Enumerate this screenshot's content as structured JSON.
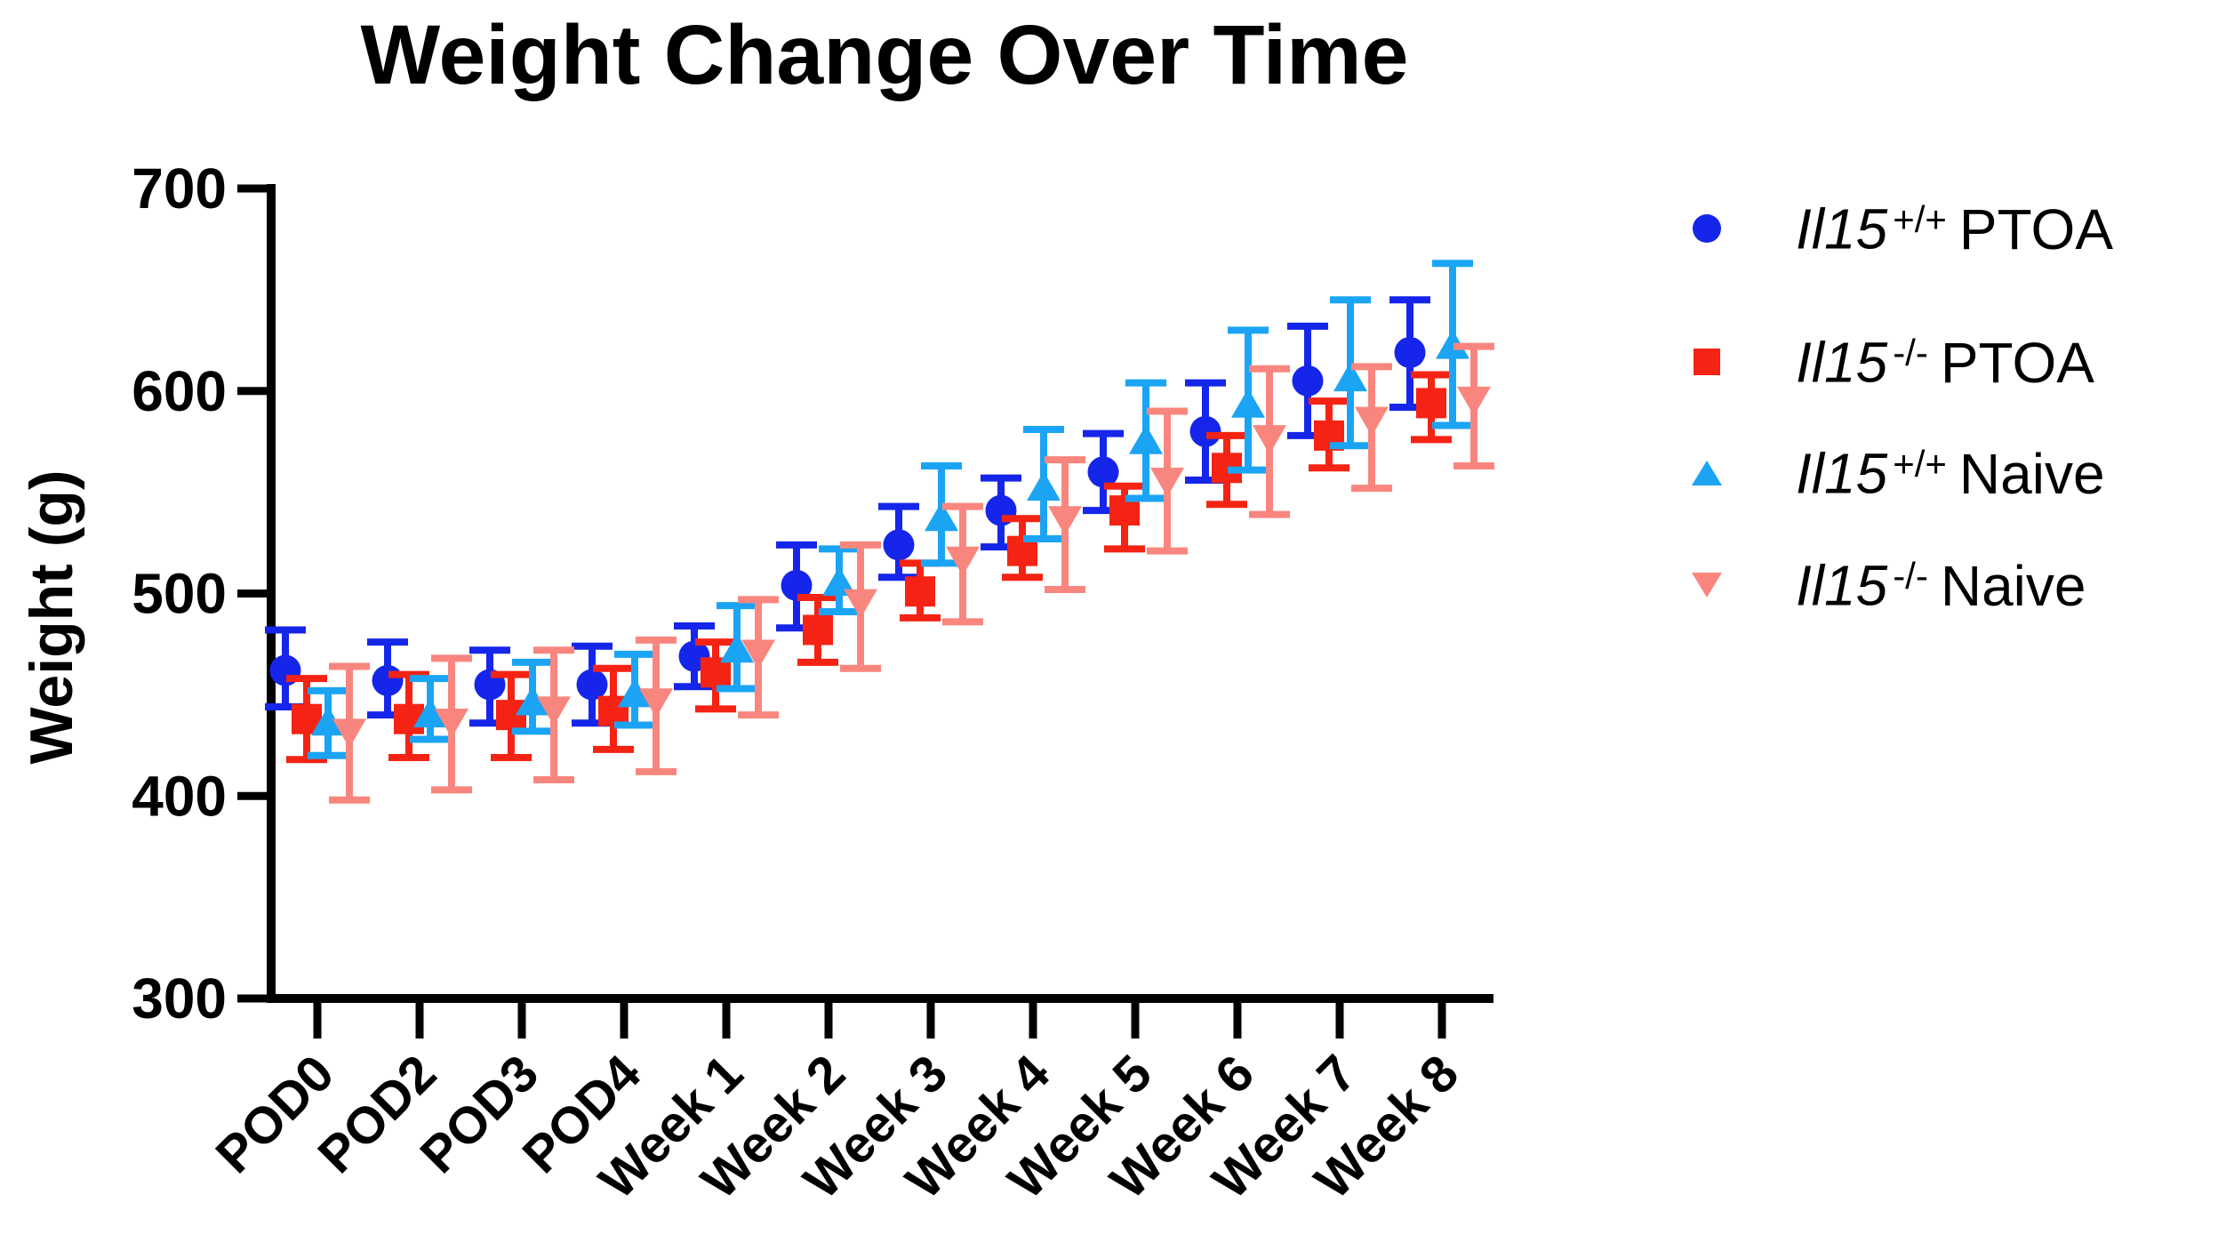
{
  "chart_data": {
    "type": "scatter",
    "title": "Weight Change Over Time",
    "ylabel": "Weight (g)",
    "xlabel": "",
    "ylim": [
      300,
      700
    ],
    "yticks": [
      700,
      600,
      500,
      400,
      300
    ],
    "grid": false,
    "legend_position": "right",
    "error_bars": true,
    "categories": [
      "POD0",
      "POD2",
      "POD3",
      "POD4",
      "Week 1",
      "Week 2",
      "Week 3",
      "Week 4",
      "Week 5",
      "Week 6",
      "Week 7",
      "Week 8"
    ],
    "series": [
      {
        "name": "Il15 +/+ PTOA",
        "gene": "Il15",
        "genotype": "+/+",
        "group": "PTOA",
        "marker": "circle",
        "color": "#1526EA",
        "means": [
          462,
          457,
          455,
          455,
          469,
          504,
          524,
          541,
          560,
          580,
          605,
          619
        ],
        "upper": [
          482,
          476,
          472,
          474,
          484,
          524,
          543,
          557,
          579,
          604,
          632,
          645
        ],
        "lower": [
          444,
          440,
          436,
          436,
          454,
          483,
          508,
          523,
          541,
          556,
          578,
          592
        ]
      },
      {
        "name": "Il15 -/- PTOA",
        "gene": "Il15",
        "genotype": "-/-",
        "group": "PTOA",
        "marker": "square",
        "color": "#F42313",
        "means": [
          438,
          438,
          440,
          442,
          461,
          482,
          501,
          521,
          541,
          562,
          578,
          594
        ],
        "upper": [
          458,
          460,
          460,
          463,
          476,
          498,
          515,
          537,
          553,
          578,
          595,
          608
        ],
        "lower": [
          418,
          419,
          419,
          423,
          443,
          466,
          488,
          508,
          522,
          544,
          562,
          576
        ]
      },
      {
        "name": "Il15 +/+ Naive",
        "gene": "Il15",
        "genotype": "+/+",
        "group": "Naive",
        "marker": "triangle-up",
        "color": "#1BA4F4",
        "means": [
          436,
          440,
          446,
          450,
          472,
          505,
          537,
          552,
          575,
          593,
          606,
          622
        ],
        "upper": [
          452,
          458,
          466,
          470,
          494,
          522,
          563,
          581,
          604,
          630,
          645,
          663
        ],
        "lower": [
          420,
          428,
          432,
          435,
          453,
          491,
          515,
          527,
          547,
          561,
          573,
          583
        ]
      },
      {
        "name": "Il15 -/- Naive",
        "gene": "Il15",
        "genotype": "-/-",
        "group": "Naive",
        "marker": "triangle-down",
        "color": "#F9867E",
        "means": [
          432,
          437,
          443,
          447,
          471,
          496,
          517,
          537,
          556,
          577,
          586,
          596
        ],
        "upper": [
          464,
          468,
          472,
          477,
          497,
          524,
          543,
          566,
          590,
          611,
          612,
          622
        ],
        "lower": [
          398,
          403,
          408,
          412,
          440,
          463,
          486,
          502,
          521,
          539,
          552,
          563
        ]
      }
    ],
    "axis_color": "#000000"
  }
}
